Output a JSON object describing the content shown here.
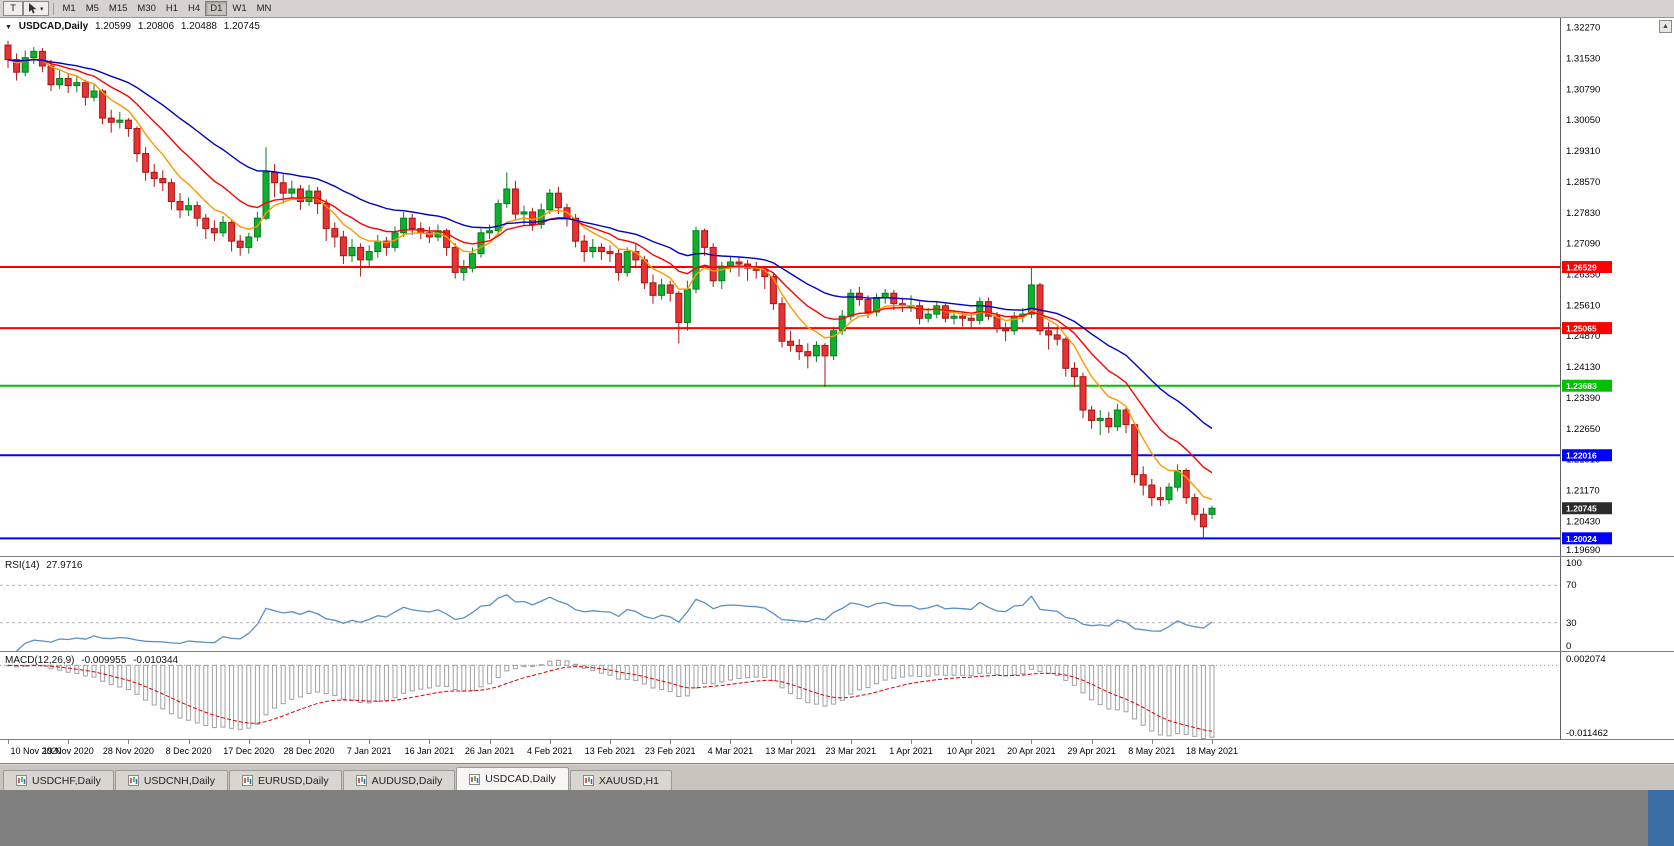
{
  "toolbar": {
    "chart_type_button": "T",
    "cursor_tool": "crosshair-pointer",
    "timeframes": [
      "M1",
      "M5",
      "M15",
      "M30",
      "H1",
      "H4",
      "D1",
      "W1",
      "MN"
    ],
    "active_timeframe": "D1"
  },
  "chart_header": {
    "symbol": "USDCAD,Daily",
    "open": "1.20599",
    "high": "1.20806",
    "low": "1.20488",
    "close": "1.20745"
  },
  "chart_data": {
    "type": "candlestick",
    "title": "USDCAD,Daily",
    "colors": {
      "bull": "#0fb02f",
      "bull_border": "#067d1f",
      "bear": "#e63232",
      "bear_border": "#a81414",
      "background": "#ffffff",
      "axis_sep": "#5f5f5f"
    },
    "main": {
      "ylim": [
        1.196,
        1.325
      ],
      "y_ticks": [
        "1.32270",
        "1.31530",
        "1.30790",
        "1.30050",
        "1.29310",
        "1.28570",
        "1.27830",
        "1.27090",
        "1.26350",
        "1.25610",
        "1.24870",
        "1.24130",
        "1.23390",
        "1.22650",
        "1.21910",
        "1.21170",
        "1.20430",
        "1.19690"
      ],
      "x_labels": [
        "10 Nov 2020",
        "19 Nov 2020",
        "28 Nov 2020",
        "8 Dec 2020",
        "17 Dec 2020",
        "28 Dec 2020",
        "7 Jan 2021",
        "16 Jan 2021",
        "26 Jan 2021",
        "4 Feb 2021",
        "13 Feb 2021",
        "23 Feb 2021",
        "4 Mar 2021",
        "13 Mar 2021",
        "23 Mar 2021",
        "1 Apr 2021",
        "10 Apr 2021",
        "20 Apr 2021",
        "29 Apr 2021",
        "8 May 2021",
        "18 May 2021"
      ],
      "hlines": [
        {
          "price": 1.26529,
          "label": "1.26529",
          "color": "#ff0000"
        },
        {
          "price": 1.25065,
          "label": "1.25065",
          "color": "#ff0000"
        },
        {
          "price": 1.23683,
          "label": "1.23683",
          "color": "#00c000"
        },
        {
          "price": 1.22016,
          "label": "1.22016",
          "color": "#0000ff"
        },
        {
          "price": 1.20024,
          "label": "1.20024",
          "color": "#0000ff"
        }
      ],
      "current_price": {
        "price": 1.20745,
        "label": "1.20745",
        "color": "#2b2b2b"
      },
      "moving_averages": [
        {
          "period": 7,
          "color": "#ff9900"
        },
        {
          "period": 14,
          "color": "#ff0000"
        },
        {
          "period": 28,
          "color": "#0000c8"
        }
      ],
      "candles": [
        [
          1.3185,
          1.3195,
          1.313,
          1.315
        ],
        [
          1.315,
          1.3165,
          1.31,
          1.312
        ],
        [
          1.312,
          1.3172,
          1.311,
          1.3155
        ],
        [
          1.3155,
          1.318,
          1.314,
          1.317
        ],
        [
          1.317,
          1.3178,
          1.312,
          1.3135
        ],
        [
          1.3135,
          1.315,
          1.3075,
          1.309
        ],
        [
          1.309,
          1.3125,
          1.308,
          1.3105
        ],
        [
          1.3105,
          1.3118,
          1.307,
          1.3088
        ],
        [
          1.3088,
          1.311,
          1.3072,
          1.3095
        ],
        [
          1.3095,
          1.3102,
          1.304,
          1.306
        ],
        [
          1.306,
          1.309,
          1.305,
          1.3075
        ],
        [
          1.3075,
          1.308,
          1.2995,
          1.301
        ],
        [
          1.301,
          1.303,
          1.2975,
          1.3
        ],
        [
          1.3,
          1.3025,
          1.2985,
          1.3005
        ],
        [
          1.3005,
          1.301,
          1.2965,
          1.2985
        ],
        [
          1.2985,
          1.299,
          1.2905,
          1.2925
        ],
        [
          1.2925,
          1.294,
          1.286,
          1.288
        ],
        [
          1.288,
          1.29,
          1.2845,
          1.2865
        ],
        [
          1.2865,
          1.2885,
          1.2835,
          1.2855
        ],
        [
          1.2855,
          1.2865,
          1.279,
          1.281
        ],
        [
          1.281,
          1.283,
          1.277,
          1.279
        ],
        [
          1.279,
          1.282,
          1.2775,
          1.28
        ],
        [
          1.28,
          1.281,
          1.275,
          1.277
        ],
        [
          1.277,
          1.278,
          1.272,
          1.2745
        ],
        [
          1.2745,
          1.2765,
          1.2715,
          1.2735
        ],
        [
          1.2735,
          1.2775,
          1.2725,
          1.276
        ],
        [
          1.276,
          1.2768,
          1.269,
          1.2715
        ],
        [
          1.2715,
          1.273,
          1.268,
          1.27
        ],
        [
          1.27,
          1.2735,
          1.2685,
          1.2725
        ],
        [
          1.2725,
          1.2785,
          1.2715,
          1.277
        ],
        [
          1.277,
          1.294,
          1.2765,
          1.288
        ],
        [
          1.288,
          1.29,
          1.282,
          1.2855
        ],
        [
          1.2855,
          1.2875,
          1.2805,
          1.283
        ],
        [
          1.283,
          1.286,
          1.2815,
          1.284
        ],
        [
          1.284,
          1.285,
          1.279,
          1.281
        ],
        [
          1.281,
          1.285,
          1.28,
          1.2835
        ],
        [
          1.2835,
          1.2845,
          1.278,
          1.2805
        ],
        [
          1.2805,
          1.2815,
          1.2715,
          1.2745
        ],
        [
          1.2745,
          1.276,
          1.27,
          1.2725
        ],
        [
          1.2725,
          1.274,
          1.266,
          1.268
        ],
        [
          1.268,
          1.272,
          1.2665,
          1.27
        ],
        [
          1.27,
          1.271,
          1.263,
          1.267
        ],
        [
          1.267,
          1.2705,
          1.265,
          1.269
        ],
        [
          1.269,
          1.273,
          1.2675,
          1.2715
        ],
        [
          1.2715,
          1.2725,
          1.268,
          1.27
        ],
        [
          1.27,
          1.275,
          1.269,
          1.2735
        ],
        [
          1.2735,
          1.2785,
          1.2725,
          1.277
        ],
        [
          1.277,
          1.278,
          1.273,
          1.2745
        ],
        [
          1.2745,
          1.276,
          1.272,
          1.2735
        ],
        [
          1.2735,
          1.275,
          1.271,
          1.2725
        ],
        [
          1.2725,
          1.2755,
          1.2715,
          1.274
        ],
        [
          1.274,
          1.2745,
          1.268,
          1.27
        ],
        [
          1.27,
          1.271,
          1.2625,
          1.264
        ],
        [
          1.264,
          1.267,
          1.262,
          1.265
        ],
        [
          1.265,
          1.27,
          1.264,
          1.2685
        ],
        [
          1.2685,
          1.2745,
          1.2675,
          1.2735
        ],
        [
          1.2735,
          1.2755,
          1.272,
          1.274
        ],
        [
          1.274,
          1.2815,
          1.273,
          1.2805
        ],
        [
          1.2805,
          1.288,
          1.2795,
          1.284
        ],
        [
          1.284,
          1.286,
          1.2765,
          1.278
        ],
        [
          1.278,
          1.28,
          1.2755,
          1.2785
        ],
        [
          1.2785,
          1.2795,
          1.274,
          1.2755
        ],
        [
          1.2755,
          1.2805,
          1.2745,
          1.279
        ],
        [
          1.279,
          1.284,
          1.278,
          1.283
        ],
        [
          1.283,
          1.2845,
          1.278,
          1.2795
        ],
        [
          1.2795,
          1.2805,
          1.275,
          1.277
        ],
        [
          1.277,
          1.278,
          1.27,
          1.2715
        ],
        [
          1.2715,
          1.273,
          1.2665,
          1.269
        ],
        [
          1.269,
          1.272,
          1.2675,
          1.27
        ],
        [
          1.27,
          1.271,
          1.267,
          1.269
        ],
        [
          1.269,
          1.2705,
          1.2665,
          1.2685
        ],
        [
          1.2685,
          1.2695,
          1.262,
          1.264
        ],
        [
          1.264,
          1.27,
          1.263,
          1.269
        ],
        [
          1.269,
          1.271,
          1.265,
          1.267
        ],
        [
          1.267,
          1.268,
          1.26,
          1.2615
        ],
        [
          1.2615,
          1.2635,
          1.2565,
          1.2585
        ],
        [
          1.2585,
          1.2625,
          1.2575,
          1.261
        ],
        [
          1.261,
          1.262,
          1.257,
          1.259
        ],
        [
          1.259,
          1.2595,
          1.247,
          1.252
        ],
        [
          1.252,
          1.262,
          1.25,
          1.26
        ],
        [
          1.26,
          1.275,
          1.259,
          1.274
        ],
        [
          1.274,
          1.2745,
          1.268,
          1.27
        ],
        [
          1.27,
          1.271,
          1.2605,
          1.262
        ],
        [
          1.262,
          1.2665,
          1.26,
          1.2655
        ],
        [
          1.2655,
          1.268,
          1.264,
          1.2665
        ],
        [
          1.2665,
          1.2675,
          1.263,
          1.266
        ],
        [
          1.266,
          1.267,
          1.262,
          1.265
        ],
        [
          1.265,
          1.2665,
          1.2625,
          1.2645
        ],
        [
          1.2645,
          1.2655,
          1.26,
          1.263
        ],
        [
          1.263,
          1.264,
          1.255,
          1.2565
        ],
        [
          1.2565,
          1.258,
          1.246,
          1.2475
        ],
        [
          1.2475,
          1.25,
          1.245,
          1.2465
        ],
        [
          1.2465,
          1.248,
          1.243,
          1.245
        ],
        [
          1.245,
          1.247,
          1.241,
          1.244
        ],
        [
          1.244,
          1.2475,
          1.2425,
          1.2465
        ],
        [
          1.2465,
          1.247,
          1.2365,
          1.244
        ],
        [
          1.244,
          1.251,
          1.243,
          1.25
        ],
        [
          1.25,
          1.255,
          1.249,
          1.2535
        ],
        [
          1.2535,
          1.26,
          1.2525,
          1.259
        ],
        [
          1.259,
          1.2605,
          1.256,
          1.2575
        ],
        [
          1.2575,
          1.2585,
          1.253,
          1.2545
        ],
        [
          1.2545,
          1.259,
          1.2535,
          1.258
        ],
        [
          1.258,
          1.26,
          1.2565,
          1.259
        ],
        [
          1.259,
          1.2598,
          1.255,
          1.2565
        ],
        [
          1.2565,
          1.258,
          1.2545,
          1.256
        ],
        [
          1.2555,
          1.2585,
          1.2545,
          1.256
        ],
        [
          1.256,
          1.257,
          1.2515,
          1.253
        ],
        [
          1.253,
          1.2555,
          1.252,
          1.254
        ],
        [
          1.254,
          1.257,
          1.253,
          1.256
        ],
        [
          1.256,
          1.2565,
          1.252,
          1.253
        ],
        [
          1.253,
          1.255,
          1.2515,
          1.2535
        ],
        [
          1.2535,
          1.2545,
          1.251,
          1.253
        ],
        [
          1.253,
          1.254,
          1.2505,
          1.2525
        ],
        [
          1.2525,
          1.258,
          1.2515,
          1.257
        ],
        [
          1.257,
          1.258,
          1.2525,
          1.2535
        ],
        [
          1.2535,
          1.2545,
          1.2495,
          1.2505
        ],
        [
          1.2505,
          1.252,
          1.2475,
          1.25
        ],
        [
          1.25,
          1.2545,
          1.249,
          1.2535
        ],
        [
          1.2535,
          1.2555,
          1.252,
          1.254
        ],
        [
          1.254,
          1.2655,
          1.253,
          1.261
        ],
        [
          1.261,
          1.2615,
          1.249,
          1.25
        ],
        [
          1.25,
          1.252,
          1.2455,
          1.249
        ],
        [
          1.249,
          1.251,
          1.2465,
          1.248
        ],
        [
          1.248,
          1.2485,
          1.239,
          1.241
        ],
        [
          1.241,
          1.2425,
          1.2365,
          1.239
        ],
        [
          1.239,
          1.24,
          1.229,
          1.231
        ],
        [
          1.231,
          1.232,
          1.2265,
          1.2285
        ],
        [
          1.2285,
          1.231,
          1.225,
          1.229
        ],
        [
          1.229,
          1.2305,
          1.2255,
          1.227
        ],
        [
          1.227,
          1.2325,
          1.226,
          1.231
        ],
        [
          1.231,
          1.2315,
          1.2255,
          1.2275
        ],
        [
          1.2275,
          1.228,
          1.2135,
          1.2155
        ],
        [
          1.2155,
          1.2175,
          1.2105,
          1.213
        ],
        [
          1.213,
          1.2145,
          1.208,
          1.21
        ],
        [
          1.21,
          1.2125,
          1.208,
          1.2095
        ],
        [
          1.2095,
          1.2135,
          1.2085,
          1.2125
        ],
        [
          1.2125,
          1.218,
          1.2115,
          1.2165
        ],
        [
          1.2165,
          1.217,
          1.2085,
          1.21
        ],
        [
          1.21,
          1.211,
          1.2045,
          1.206
        ],
        [
          1.206,
          1.2075,
          1.2002,
          1.203
        ],
        [
          1.20599,
          1.20806,
          1.20488,
          1.20745
        ]
      ]
    },
    "rsi": {
      "label": "RSI(14)",
      "value": "27.9716",
      "period": 14,
      "levels": [
        100,
        70,
        30,
        0
      ],
      "level_labels": [
        "100",
        "70",
        "30",
        "0"
      ],
      "color": "#5a8fc8"
    },
    "macd": {
      "label": "MACD(12,26,9)",
      "macd_value": "-0.009955",
      "signal_value": "-0.010344",
      "fast": 12,
      "slow": 26,
      "signal_period": 9,
      "ylim": [
        -0.011462,
        0.002074
      ],
      "axis_labels": {
        "top": "0.002074",
        "bottom": "-0.011462"
      },
      "histogram_color": "#a0a0a0",
      "signal_color": "#e00000"
    }
  },
  "tabs": {
    "items": [
      "USDCHF,Daily",
      "USDCNH,Daily",
      "EURUSD,Daily",
      "AUDUSD,Daily",
      "USDCAD,Daily",
      "XAUUSD,H1"
    ],
    "active": "USDCAD,Daily"
  },
  "scrollbar": {
    "up_arrow": "▲"
  },
  "marker": "▼"
}
